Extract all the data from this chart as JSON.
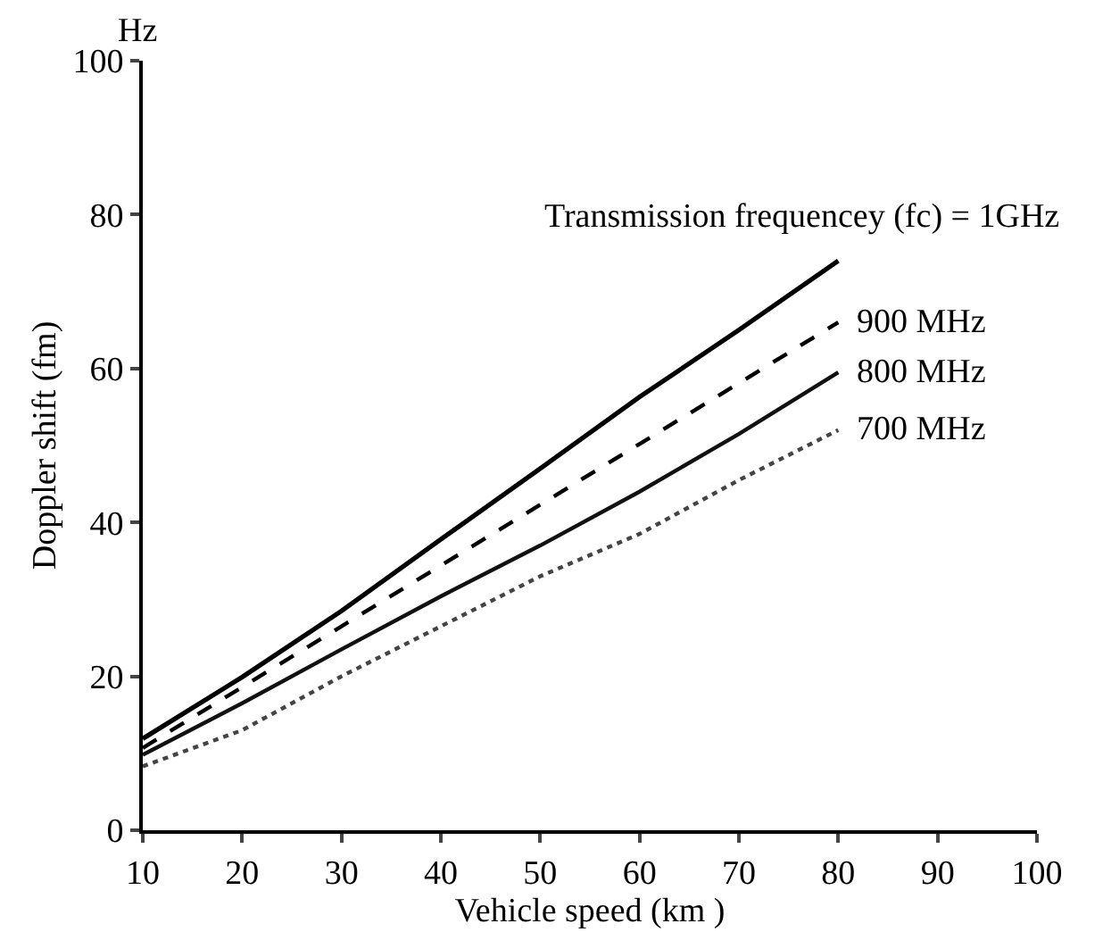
{
  "chart_data": {
    "type": "line",
    "xlabel": "Vehicle speed (km )",
    "ylabel": "Doppler shift (fm)",
    "annotations": [
      "Hz"
    ],
    "x": [
      10,
      20,
      30,
      40,
      50,
      60,
      70,
      80
    ],
    "series": [
      {
        "name": "Transmission frequencey (fc) = 1GHz",
        "color": "#000000",
        "line_style": "solid",
        "values": [
          11.9,
          19.9,
          28.5,
          37.8,
          47,
          56.3,
          65,
          74
        ]
      },
      {
        "name": "900 MHz",
        "color": "#000000",
        "line_style": "dashed",
        "values": [
          10.7,
          18.6,
          26.5,
          34.4,
          42.3,
          50.2,
          58.1,
          66
        ]
      },
      {
        "name": "800 MHz",
        "color": "#111111",
        "line_style": "solid",
        "values": [
          9.8,
          16.5,
          23.5,
          30.4,
          37,
          44,
          51.5,
          59.5
        ]
      },
      {
        "name": "700 MHz",
        "color": "#444444",
        "line_style": "dotted",
        "values": [
          8.3,
          13,
          20,
          26.5,
          33,
          38.5,
          45.5,
          52
        ]
      }
    ],
    "marker": "none",
    "grid": false,
    "legend": false,
    "xlim": [
      10,
      100
    ],
    "xticks": [
      10,
      20,
      30,
      40,
      50,
      60,
      70,
      80,
      90,
      100
    ],
    "ylim": [
      0,
      100
    ],
    "yticks": [
      0,
      20,
      40,
      60,
      80,
      100
    ]
  }
}
